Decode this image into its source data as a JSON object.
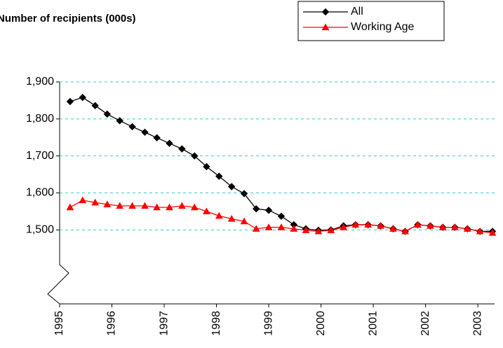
{
  "chart_data": {
    "type": "line",
    "subtitle": "Number of recipients (000s)",
    "x": [
      1995.2,
      1995.44,
      1995.68,
      1995.91,
      1996.15,
      1996.39,
      1996.63,
      1996.86,
      1997.1,
      1997.34,
      1997.58,
      1997.81,
      1998.05,
      1998.29,
      1998.53,
      1998.76,
      1999.0,
      1999.24,
      1999.48,
      1999.71,
      1999.95,
      2000.19,
      2000.43,
      2000.66,
      2000.9,
      2001.14,
      2001.38,
      2001.61,
      2001.85,
      2002.09,
      2002.33,
      2002.56,
      2002.8,
      2003.04,
      2003.28
    ],
    "series": [
      {
        "name": "All",
        "color": "#000000",
        "marker": "diamond",
        "values": [
          1847,
          1858,
          1836,
          1813,
          1795,
          1779,
          1764,
          1749,
          1734,
          1719,
          1700,
          1671,
          1645,
          1617,
          1598,
          1557,
          1553,
          1537,
          1514,
          1503,
          1499,
          1500,
          1511,
          1514,
          1514,
          1511,
          1503,
          1496,
          1514,
          1511,
          1507,
          1507,
          1503,
          1496,
          1496
        ]
      },
      {
        "name": "Working Age",
        "color": "#ff0000",
        "marker": "triangle",
        "values": [
          1561,
          1580,
          1574,
          1569,
          1565,
          1565,
          1565,
          1561,
          1561,
          1565,
          1561,
          1550,
          1538,
          1530,
          1523,
          1503,
          1507,
          1507,
          1503,
          1499,
          1496,
          1499,
          1507,
          1514,
          1514,
          1511,
          1503,
          1496,
          1514,
          1511,
          1507,
          1507,
          1503,
          1496,
          1492
        ]
      }
    ],
    "xlim": [
      1995,
      2003.32
    ],
    "xticks": [
      1995,
      1996,
      1997,
      1998,
      1999,
      2000,
      2001,
      2002,
      2003
    ],
    "ylim": [
      1300,
      1900
    ],
    "yticks": [
      {
        "value": 1500,
        "label": "1,500"
      },
      {
        "value": 1600,
        "label": "1,600"
      },
      {
        "value": 1700,
        "label": "1,700"
      },
      {
        "value": 1800,
        "label": "1,800"
      },
      {
        "value": 1900,
        "label": "1,900"
      }
    ],
    "grid": true,
    "legend": "upper right"
  }
}
